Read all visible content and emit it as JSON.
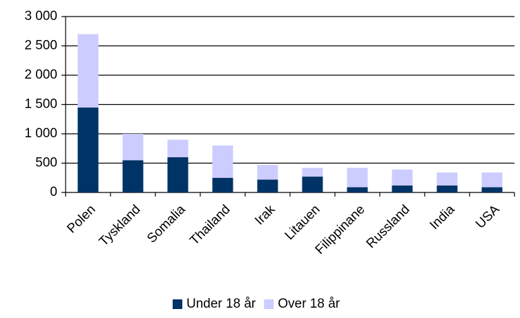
{
  "chart_data": {
    "type": "stacked_bar",
    "categories": [
      "Polen",
      "Tyskland",
      "Somalia",
      "Thailand",
      "Irak",
      "Litauen",
      "Filippinane",
      "Russland",
      "India",
      "USA"
    ],
    "series": [
      {
        "name": "Under 18 år",
        "color": "#003366",
        "values": [
          1450,
          550,
          600,
          250,
          220,
          270,
          90,
          120,
          120,
          90
        ]
      },
      {
        "name": "Over 18 år",
        "color": "#ccccff",
        "values": [
          1250,
          450,
          300,
          550,
          250,
          150,
          330,
          270,
          220,
          250
        ]
      }
    ],
    "ylim": [
      0,
      3000
    ],
    "yticks": [
      0,
      {
        "value": 500,
        "label": "500"
      },
      {
        "value": 1000,
        "label": "1 000"
      },
      {
        "value": 1500,
        "label": "1 500"
      },
      {
        "value": 2000,
        "label": "2 000"
      },
      {
        "value": 2500,
        "label": "2 500"
      },
      {
        "value": 3000,
        "label": "3 000"
      }
    ],
    "grid": true,
    "legend": "bottom"
  }
}
